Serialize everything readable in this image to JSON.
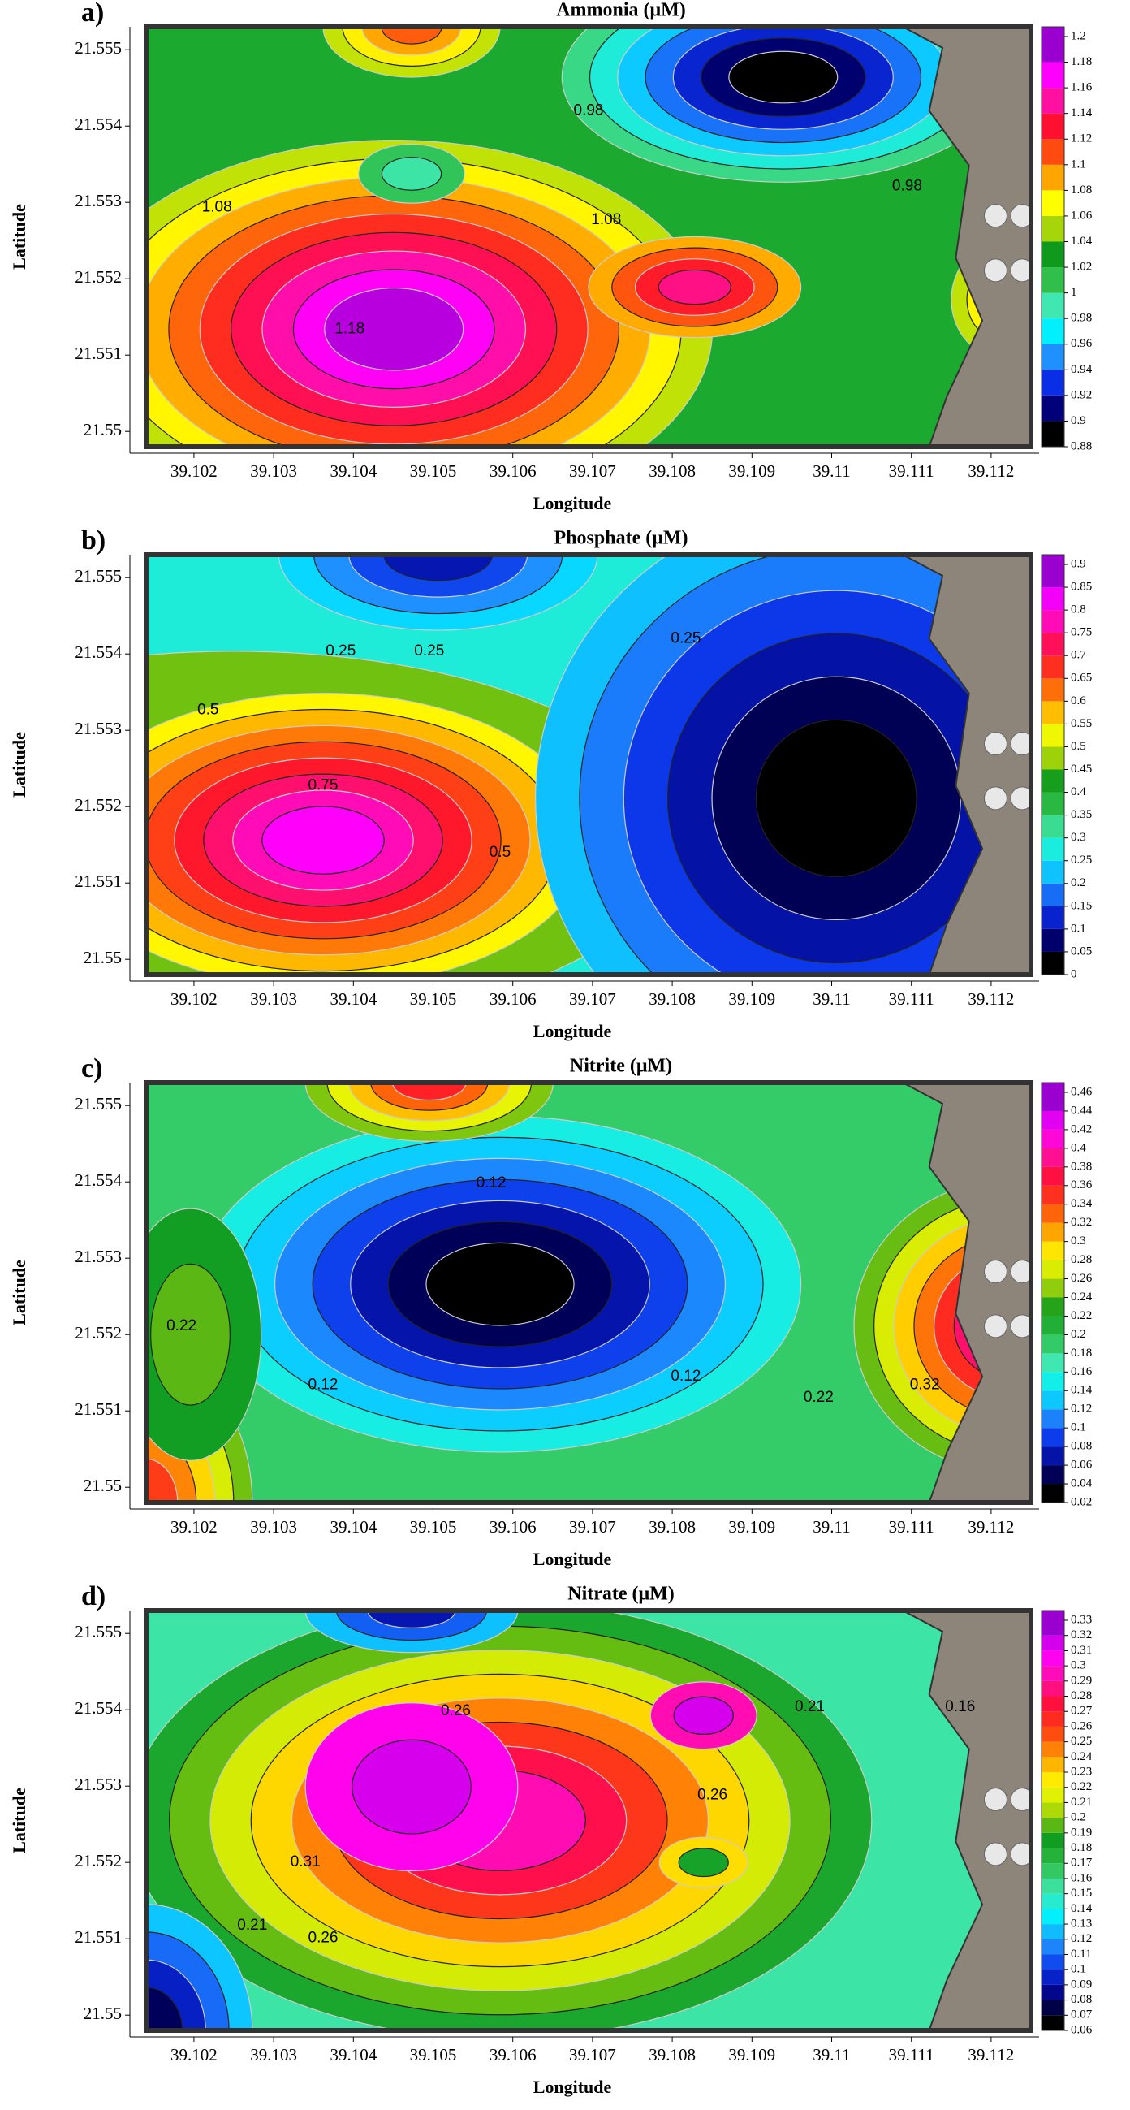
{
  "colormap": [
    "#000000",
    "#00007a",
    "#0a2ee6",
    "#1e90ff",
    "#00f0ff",
    "#3ee8b0",
    "#2fbf4a",
    "#0f9a1e",
    "#a6d60a",
    "#ffff00",
    "#ffa500",
    "#ff4a10",
    "#ff1030",
    "#ff10a0",
    "#ff00ff",
    "#9a00d0"
  ],
  "chart_data": [
    {
      "type": "contour",
      "panel_label": "a)",
      "title": "Ammonia (μM)",
      "xlabel": "Longitude",
      "ylabel": "Latitude",
      "xlim": [
        39.1014,
        39.1125
      ],
      "xticks": [
        39.102,
        39.103,
        39.104,
        39.105,
        39.106,
        39.107,
        39.108,
        39.109,
        39.11,
        39.111,
        39.112
      ],
      "ylim": [
        21.5498,
        21.5553
      ],
      "yticks": [
        21.55,
        21.551,
        21.552,
        21.553,
        21.554,
        21.555
      ],
      "colorbar_ticks": [
        0.88,
        0.9,
        0.92,
        0.94,
        0.96,
        0.98,
        1,
        1.02,
        1.04,
        1.06,
        1.08,
        1.1,
        1.12,
        1.14,
        1.16,
        1.18,
        1.2
      ],
      "contour_labels": [
        1.08,
        1.08,
        0.98,
        0.98,
        1.18
      ]
    },
    {
      "type": "contour",
      "panel_label": "b)",
      "title": "Phosphate (μM)",
      "xlabel": "Longitude",
      "ylabel": "Latitude",
      "xlim": [
        39.1014,
        39.1125
      ],
      "xticks": [
        39.102,
        39.103,
        39.104,
        39.105,
        39.106,
        39.107,
        39.108,
        39.109,
        39.11,
        39.111,
        39.112
      ],
      "ylim": [
        21.5498,
        21.5553
      ],
      "yticks": [
        21.55,
        21.551,
        21.552,
        21.553,
        21.554,
        21.555
      ],
      "colorbar_ticks": [
        0,
        0.05,
        0.1,
        0.15,
        0.2,
        0.25,
        0.3,
        0.35,
        0.4,
        0.45,
        0.5,
        0.55,
        0.6,
        0.65,
        0.7,
        0.75,
        0.8,
        0.85,
        0.9
      ],
      "contour_labels": [
        0.25,
        0.25,
        0.25,
        0.5,
        0.5,
        0.75
      ]
    },
    {
      "type": "contour",
      "panel_label": "c)",
      "title": "Nitrite (μM)",
      "xlabel": "Longitude",
      "ylabel": "Latitude",
      "xlim": [
        39.1014,
        39.1125
      ],
      "xticks": [
        39.102,
        39.103,
        39.104,
        39.105,
        39.106,
        39.107,
        39.108,
        39.109,
        39.11,
        39.111,
        39.112
      ],
      "ylim": [
        21.5498,
        21.5553
      ],
      "yticks": [
        21.55,
        21.551,
        21.552,
        21.553,
        21.554,
        21.555
      ],
      "colorbar_ticks": [
        0.02,
        0.04,
        0.06,
        0.08,
        0.1,
        0.12,
        0.14,
        0.16,
        0.18,
        0.2,
        0.22,
        0.24,
        0.26,
        0.28,
        0.3,
        0.32,
        0.34,
        0.36,
        0.38,
        0.4,
        0.42,
        0.44,
        0.46
      ],
      "contour_labels": [
        0.12,
        0.12,
        0.12,
        0.22,
        0.22,
        0.32
      ]
    },
    {
      "type": "contour",
      "panel_label": "d)",
      "title": "Nitrate (μM)",
      "xlabel": "Longitude",
      "ylabel": "Latitude",
      "xlim": [
        39.1014,
        39.1125
      ],
      "xticks": [
        39.102,
        39.103,
        39.104,
        39.105,
        39.106,
        39.107,
        39.108,
        39.109,
        39.11,
        39.111,
        39.112
      ],
      "ylim": [
        21.5498,
        21.5553
      ],
      "yticks": [
        21.55,
        21.551,
        21.552,
        21.553,
        21.554,
        21.555
      ],
      "colorbar_ticks": [
        0.06,
        0.07,
        0.08,
        0.09,
        0.1,
        0.11,
        0.12,
        0.13,
        0.14,
        0.15,
        0.16,
        0.17,
        0.18,
        0.19,
        0.2,
        0.21,
        0.22,
        0.23,
        0.24,
        0.25,
        0.26,
        0.27,
        0.28,
        0.29,
        0.3,
        0.31,
        0.32,
        0.33
      ],
      "contour_labels": [
        0.26,
        0.26,
        0.21,
        0.16,
        0.31,
        0.21,
        0.26
      ]
    }
  ]
}
